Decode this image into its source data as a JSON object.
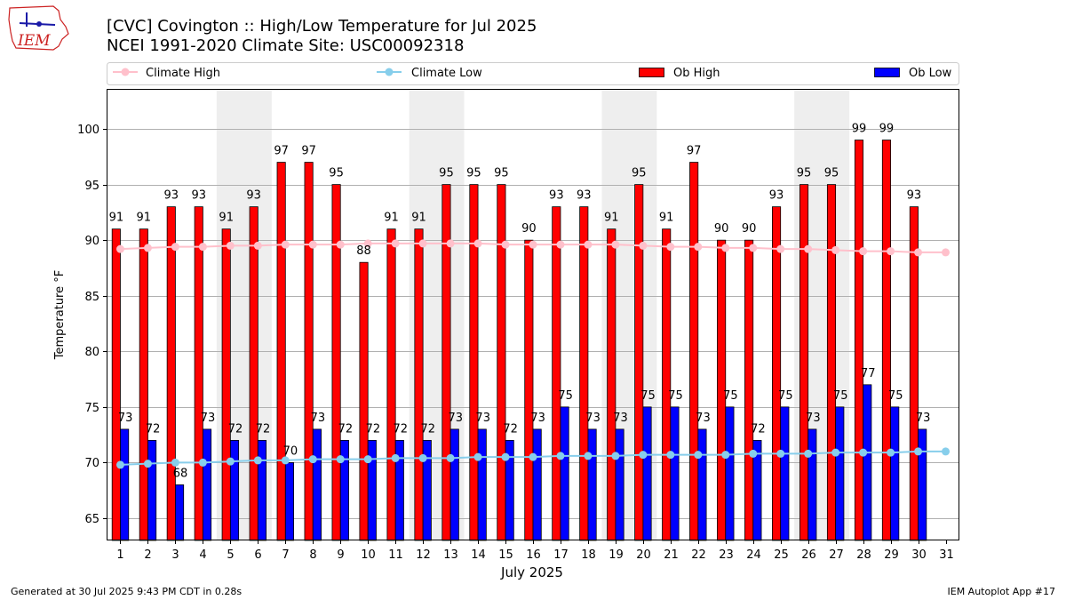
{
  "title_line1": "[CVC] Covington :: High/Low Temperature for Jul 2025",
  "title_line2": "NCEI 1991-2020 Climate Site: USC00092318",
  "footer_left": "Generated at 30 Jul 2025 9:43 PM CDT in 0.28s",
  "footer_right": "IEM Autoplot App #17",
  "logo_text": "IEM",
  "legend": {
    "climate_high": "Climate High",
    "climate_low": "Climate Low",
    "ob_high": "Ob High",
    "ob_low": "Ob Low"
  },
  "colors": {
    "ob_high": "#ff0000",
    "ob_low": "#0000ff",
    "climate_high": "#ffc0cb",
    "climate_low": "#87ceeb",
    "weekend_band": "#eeeeee",
    "grid": "#b0b0b0"
  },
  "chart_data": {
    "type": "bar",
    "xlabel": "July 2025",
    "ylabel": "Temperature °F",
    "ylim": [
      63,
      103.6
    ],
    "yticks": [
      65,
      70,
      75,
      80,
      85,
      90,
      95,
      100
    ],
    "xticks": [
      1,
      2,
      3,
      4,
      5,
      6,
      7,
      8,
      9,
      10,
      11,
      12,
      13,
      14,
      15,
      16,
      17,
      18,
      19,
      20,
      21,
      22,
      23,
      24,
      25,
      26,
      27,
      28,
      29,
      30,
      31
    ],
    "grid": "horizontal",
    "legend_position": "top",
    "weekend_bands": [
      [
        5,
        6
      ],
      [
        12,
        13
      ],
      [
        19,
        20
      ],
      [
        26,
        27
      ]
    ],
    "ob_high": [
      91,
      91,
      93,
      93,
      91,
      93,
      97,
      97,
      95,
      88,
      91,
      91,
      95,
      95,
      95,
      90,
      93,
      93,
      91,
      95,
      91,
      97,
      90,
      90,
      93,
      95,
      95,
      99,
      99,
      93
    ],
    "ob_low": [
      73,
      72,
      68,
      73,
      72,
      72,
      70,
      73,
      72,
      72,
      72,
      72,
      73,
      73,
      72,
      73,
      75,
      73,
      73,
      75,
      75,
      73,
      75,
      72,
      75,
      73,
      75,
      77,
      75,
      73
    ],
    "climate_high": [
      89.2,
      89.3,
      89.4,
      89.4,
      89.5,
      89.5,
      89.6,
      89.6,
      89.6,
      89.7,
      89.7,
      89.7,
      89.7,
      89.7,
      89.6,
      89.6,
      89.6,
      89.6,
      89.6,
      89.5,
      89.4,
      89.4,
      89.3,
      89.3,
      89.2,
      89.2,
      89.1,
      89.0,
      89.0,
      88.9,
      88.9
    ],
    "climate_low": [
      69.8,
      69.9,
      70.0,
      70.0,
      70.1,
      70.2,
      70.2,
      70.3,
      70.3,
      70.3,
      70.4,
      70.4,
      70.4,
      70.5,
      70.5,
      70.5,
      70.6,
      70.6,
      70.6,
      70.7,
      70.7,
      70.7,
      70.7,
      70.8,
      70.8,
      70.8,
      70.9,
      70.9,
      70.9,
      71.0,
      71.0
    ]
  }
}
